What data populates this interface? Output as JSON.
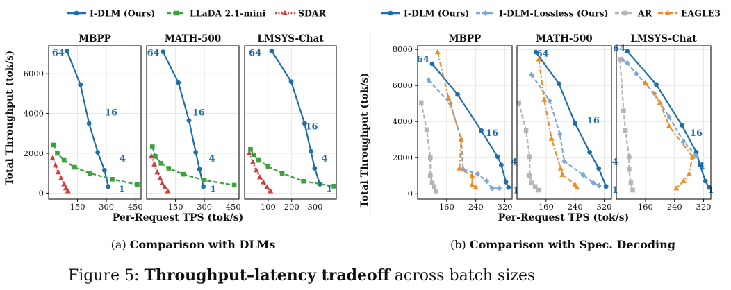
{
  "colors": {
    "idlm": "#1f6fa8",
    "llada": "#3aa33a",
    "sdar": "#d23d3d",
    "lossless": "#7ea7d6",
    "ar": "#b5b5b5",
    "eagle": "#f08c22",
    "grid": "#e2e2e2",
    "text": "#111111",
    "label_blue": "#1f6fa8"
  },
  "legend_a": [
    {
      "name": "I-DLM (Ours)",
      "color_key": "idlm",
      "marker": "circle",
      "dash": "solid"
    },
    {
      "name": "LLaDA 2.1-mini",
      "color_key": "llada",
      "marker": "square",
      "dash": "dashed"
    },
    {
      "name": "SDAR",
      "color_key": "sdar",
      "marker": "triangle",
      "dash": "dotted"
    }
  ],
  "legend_b": [
    {
      "name": "I-DLM (Ours)",
      "color_key": "idlm",
      "marker": "circle",
      "dash": "solid"
    },
    {
      "name": "I-DLM-Lossless (Ours)",
      "color_key": "lossless",
      "marker": "diamond",
      "dash": "dashed"
    },
    {
      "name": "AR",
      "color_key": "ar",
      "marker": "square",
      "dash": "dashed"
    },
    {
      "name": "EAGLE3",
      "color_key": "eagle",
      "marker": "triangle",
      "dash": "dashdot"
    }
  ],
  "group_a": {
    "ylabel": "Total Throughput (tok/s)",
    "xlabel": "Per-Request TPS (tok/s)",
    "yticks": [
      0,
      2000,
      4000,
      6000
    ],
    "ytick_labels": [
      "0",
      "2000",
      "4000",
      "6000"
    ],
    "caption_prefix": "(a) ",
    "caption_bold": "Comparison with DLMs"
  },
  "group_b": {
    "ylabel": "Total Throughput (tok/s)",
    "xlabel": "Per-Request TPS (tok/s)",
    "yticks": [
      0,
      2000,
      4000,
      6000,
      8000
    ],
    "ytick_labels": [
      "0",
      "2000",
      "4000",
      "6000",
      "8000"
    ],
    "caption_prefix": "(b) ",
    "caption_bold": "Comparison with Spec. Decoding"
  },
  "figure_caption": {
    "prefix": "Figure 5: ",
    "bold": "Throughput–latency tradeoff",
    "rest": " across batch sizes"
  },
  "chart_data": [
    {
      "type": "line",
      "group": "a",
      "title": "MBPP",
      "xlim": [
        0,
        480
      ],
      "ylim": [
        -300,
        7400
      ],
      "xticks": [
        150,
        300,
        450
      ],
      "xtick_labels": [
        "150",
        "300",
        "450"
      ],
      "series": [
        {
          "name": "I-DLM (Ours)",
          "color_key": "idlm",
          "x": [
            95,
            165,
            210,
            255,
            290,
            310
          ],
          "y": [
            7150,
            5450,
            3500,
            2050,
            1150,
            330
          ]
        },
        {
          "name": "LLaDA 2.1-mini",
          "color_key": "llada",
          "x": [
            25,
            45,
            80,
            135,
            215,
            330,
            460
          ],
          "y": [
            2420,
            2000,
            1650,
            1300,
            1000,
            700,
            430
          ]
        },
        {
          "name": "SDAR",
          "color_key": "sdar",
          "x": [
            20,
            35,
            50,
            65,
            80,
            90,
            100
          ],
          "y": [
            1750,
            1400,
            1050,
            750,
            450,
            250,
            100
          ]
        }
      ],
      "annotations": [
        {
          "text": "64",
          "x": 50,
          "y": 6900
        },
        {
          "text": "16",
          "x": 325,
          "y": 3900
        },
        {
          "text": "4",
          "x": 385,
          "y": 1600
        },
        {
          "text": "1",
          "x": 380,
          "y": 40
        }
      ]
    },
    {
      "type": "line",
      "group": "a",
      "title": "MATH-500",
      "xlim": [
        0,
        480
      ],
      "ylim": [
        -300,
        7400
      ],
      "xticks": [
        150,
        300,
        450
      ],
      "xtick_labels": [
        "150",
        "300",
        "450"
      ],
      "series": [
        {
          "name": "I-DLM (Ours)",
          "color_key": "idlm",
          "x": [
            85,
            165,
            220,
            255,
            275,
            295
          ],
          "y": [
            7100,
            5550,
            3650,
            2050,
            1200,
            330
          ]
        },
        {
          "name": "LLaDA 2.1-mini",
          "color_key": "llada",
          "x": [
            30,
            45,
            75,
            115,
            190,
            300,
            455
          ],
          "y": [
            2330,
            1850,
            1500,
            1250,
            950,
            650,
            400
          ]
        },
        {
          "name": "SDAR",
          "color_key": "sdar",
          "x": [
            25,
            40,
            55,
            70,
            80,
            95,
            110
          ],
          "y": [
            1850,
            1450,
            1050,
            750,
            500,
            300,
            100
          ]
        }
      ],
      "annotations": [
        {
          "text": "64",
          "x": 35,
          "y": 6900
        },
        {
          "text": "16",
          "x": 270,
          "y": 3900
        },
        {
          "text": "4",
          "x": 340,
          "y": 1600
        },
        {
          "text": "1",
          "x": 345,
          "y": 40
        }
      ]
    },
    {
      "type": "line",
      "group": "a",
      "title": "LMSYS-Chat",
      "xlim": [
        0,
        390
      ],
      "ylim": [
        -300,
        7400
      ],
      "xticks": [
        100,
        200,
        300
      ],
      "xtick_labels": [
        "100",
        "200",
        "300"
      ],
      "series": [
        {
          "name": "I-DLM (Ours)",
          "color_key": "idlm",
          "x": [
            115,
            198,
            255,
            282,
            298,
            320
          ],
          "y": [
            7150,
            5600,
            3500,
            2100,
            1250,
            450
          ]
        },
        {
          "name": "LLaDA 2.1-mini",
          "color_key": "llada",
          "x": [
            25,
            40,
            60,
            100,
            160,
            250,
            380
          ],
          "y": [
            2200,
            1900,
            1650,
            1350,
            1000,
            600,
            350
          ]
        },
        {
          "name": "SDAR",
          "color_key": "sdar",
          "x": [
            20,
            35,
            50,
            65,
            80,
            95,
            110
          ],
          "y": [
            2000,
            1550,
            1150,
            800,
            550,
            300,
            100
          ]
        }
      ],
      "annotations": [
        {
          "text": "64",
          "x": 45,
          "y": 6900
        },
        {
          "text": "16",
          "x": 285,
          "y": 3200
        },
        {
          "text": "4",
          "x": 340,
          "y": 1600
        },
        {
          "text": "1",
          "x": 360,
          "y": 40
        }
      ]
    },
    {
      "type": "line",
      "group": "b",
      "title": "MBPP",
      "xlim": [
        80,
        340
      ],
      "ylim": [
        -300,
        8200
      ],
      "xticks": [
        160,
        240,
        320
      ],
      "xtick_labels": [
        "160",
        "240",
        "320"
      ],
      "series": [
        {
          "name": "I-DLM (Ours)",
          "color_key": "idlm",
          "x": [
            120,
            190,
            255,
            300,
            310,
            323,
            330
          ],
          "y": [
            7200,
            5500,
            3500,
            2050,
            1600,
            650,
            350
          ]
        },
        {
          "name": "I-DLM-Lossless (Ours)",
          "color_key": "lossless",
          "x": [
            110,
            170,
            200,
            205,
            245,
            270,
            285,
            305
          ],
          "y": [
            6300,
            5000,
            3000,
            1350,
            1100,
            700,
            300,
            300
          ]
        },
        {
          "name": "AR",
          "color_key": "ar",
          "x": [
            90,
            105,
            115,
            115,
            120,
            125,
            130
          ],
          "y": [
            5050,
            3550,
            2000,
            1000,
            600,
            400,
            150
          ]
        },
        {
          "name": "EAGLE3",
          "color_key": "eagle",
          "x": [
            135,
            165,
            200,
            195,
            230,
            230,
            240
          ],
          "y": [
            7850,
            5300,
            3000,
            1400,
            1000,
            500,
            350
          ]
        }
      ],
      "annotations": [
        {
          "text": "64",
          "x": 95,
          "y": 7300
        },
        {
          "text": "16",
          "x": 285,
          "y": 3200
        },
        {
          "text": "4",
          "x": 345,
          "y": 1600
        },
        {
          "text": "1",
          "x": 350,
          "y": 20
        }
      ]
    },
    {
      "type": "line",
      "group": "b",
      "title": "MATH-500",
      "xlim": [
        80,
        340
      ],
      "ylim": [
        -300,
        8200
      ],
      "xticks": [
        160,
        240,
        320
      ],
      "xtick_labels": [
        "160",
        "240",
        "320"
      ],
      "series": [
        {
          "name": "I-DLM (Ours)",
          "color_key": "idlm",
          "x": [
            132,
            195,
            240,
            280,
            305,
            325
          ],
          "y": [
            7850,
            6100,
            3900,
            2300,
            1400,
            400
          ]
        },
        {
          "name": "I-DLM-Lossless (Ours)",
          "color_key": "lossless",
          "x": [
            120,
            170,
            198,
            210,
            262,
            290,
            306
          ],
          "y": [
            6600,
            5150,
            3300,
            1800,
            1050,
            600,
            450
          ]
        },
        {
          "name": "AR",
          "color_key": "ar",
          "x": [
            85,
            105,
            115,
            115,
            120,
            130,
            140
          ],
          "y": [
            5050,
            3500,
            2050,
            1000,
            600,
            400,
            200
          ]
        },
        {
          "name": "EAGLE3",
          "color_key": "eagle",
          "x": [
            140,
            155,
            175,
            200,
            205,
            240,
            245
          ],
          "y": [
            7450,
            5200,
            3050,
            1400,
            1050,
            500,
            350
          ]
        }
      ],
      "annotations": [
        {
          "text": "64",
          "x": 150,
          "y": 7600
        },
        {
          "text": "16",
          "x": 290,
          "y": 3900
        },
        {
          "text": "4",
          "x": 350,
          "y": 1600
        },
        {
          "text": "1",
          "x": 350,
          "y": 40
        }
      ]
    },
    {
      "type": "line",
      "group": "b",
      "title": "LMSYS-Chat",
      "xlim": [
        80,
        340
      ],
      "ylim": [
        -300,
        8200
      ],
      "xticks": [
        160,
        240,
        320
      ],
      "xtick_labels": [
        "160",
        "240",
        "320"
      ],
      "series": [
        {
          "name": "I-DLM (Ours)",
          "color_key": "idlm",
          "x": [
            110,
            190,
            260,
            300,
            310,
            325,
            335
          ],
          "y": [
            7900,
            6050,
            3800,
            2300,
            1600,
            700,
            350
          ]
        },
        {
          "name": "I-DLM-Lossless (Ours)",
          "color_key": "lossless",
          "x": [
            95,
            110,
            135,
            185,
            225,
            265,
            300
          ],
          "y": [
            7450,
            7250,
            6650,
            5550,
            4250,
            2900,
            2100
          ]
        },
        {
          "name": "AR",
          "color_key": "ar",
          "x": [
            90,
            100,
            105,
            115,
            115,
            120,
            125
          ],
          "y": [
            7450,
            4600,
            3500,
            2050,
            1350,
            600,
            200
          ]
        },
        {
          "name": "EAGLE3",
          "color_key": "eagle",
          "x": [
            160,
            200,
            225,
            290,
            280,
            265,
            245
          ],
          "y": [
            6150,
            5050,
            3750,
            2050,
            1100,
            700,
            300
          ]
        }
      ],
      "annotations": [
        {
          "text": "64",
          "x": 88,
          "y": 7900
        },
        {
          "text": "16",
          "x": 300,
          "y": 3200
        },
        {
          "text": "4",
          "x": 315,
          "y": 1400
        },
        {
          "text": "1",
          "x": 340,
          "y": 40
        }
      ]
    }
  ]
}
